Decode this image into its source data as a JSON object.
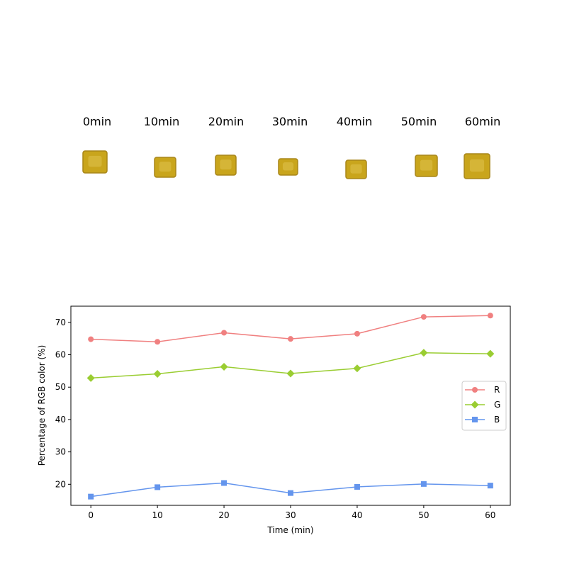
{
  "samples": {
    "labels": [
      "0min",
      "10min",
      "20min",
      "30min",
      "40min",
      "50min",
      "60min"
    ],
    "colors": {
      "sample_fill": "#c9a51c",
      "sample_dark": "#a8861a",
      "sample_light": "#ddc04a"
    }
  },
  "chart_data": {
    "type": "line",
    "title": "",
    "xlabel": "Time (min)",
    "ylabel": "Percentage of RGB color (%)",
    "x": [
      0,
      10,
      20,
      30,
      40,
      50,
      60
    ],
    "xlim": [
      -3,
      63
    ],
    "ylim": [
      13.5,
      75
    ],
    "xticks": [
      0,
      10,
      20,
      30,
      40,
      50,
      60
    ],
    "yticks": [
      20,
      30,
      40,
      50,
      60,
      70
    ],
    "grid": false,
    "legend_position": "center-right",
    "series": [
      {
        "name": "R",
        "color": "#f08080",
        "marker": "circle",
        "values": [
          64.8,
          64.0,
          66.8,
          64.9,
          66.5,
          71.7,
          72.1
        ]
      },
      {
        "name": "G",
        "color": "#9acd32",
        "marker": "diamond",
        "values": [
          52.8,
          54.1,
          56.3,
          54.2,
          55.8,
          60.6,
          60.3
        ]
      },
      {
        "name": "B",
        "color": "#6495ed",
        "marker": "square",
        "values": [
          16.2,
          19.1,
          20.4,
          17.3,
          19.2,
          20.1,
          19.6
        ]
      }
    ]
  }
}
